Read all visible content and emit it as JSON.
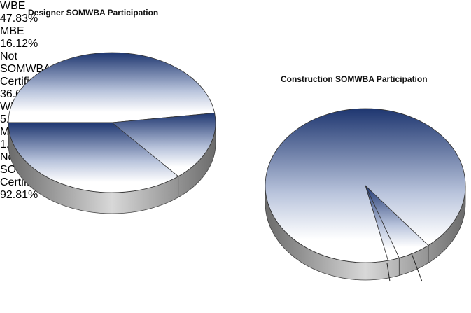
{
  "chart_data": [
    {
      "type": "pie",
      "title": "Designer SOMWBA Participation",
      "categories": [
        "WBE",
        "MBE",
        "Not SOMWBA Certified"
      ],
      "values": [
        47.83,
        16.12,
        36.05
      ],
      "value_labels": [
        "47.83%",
        "16.12%",
        "36.05%"
      ]
    },
    {
      "type": "pie",
      "title": "Construction SOMWBA Participation",
      "categories": [
        "WBE",
        "MBE",
        "Not SOMWBA Certified"
      ],
      "values": [
        5.35,
        1.84,
        92.81
      ],
      "value_labels": [
        "5.35%",
        "1.84%",
        "92.81%"
      ]
    }
  ]
}
